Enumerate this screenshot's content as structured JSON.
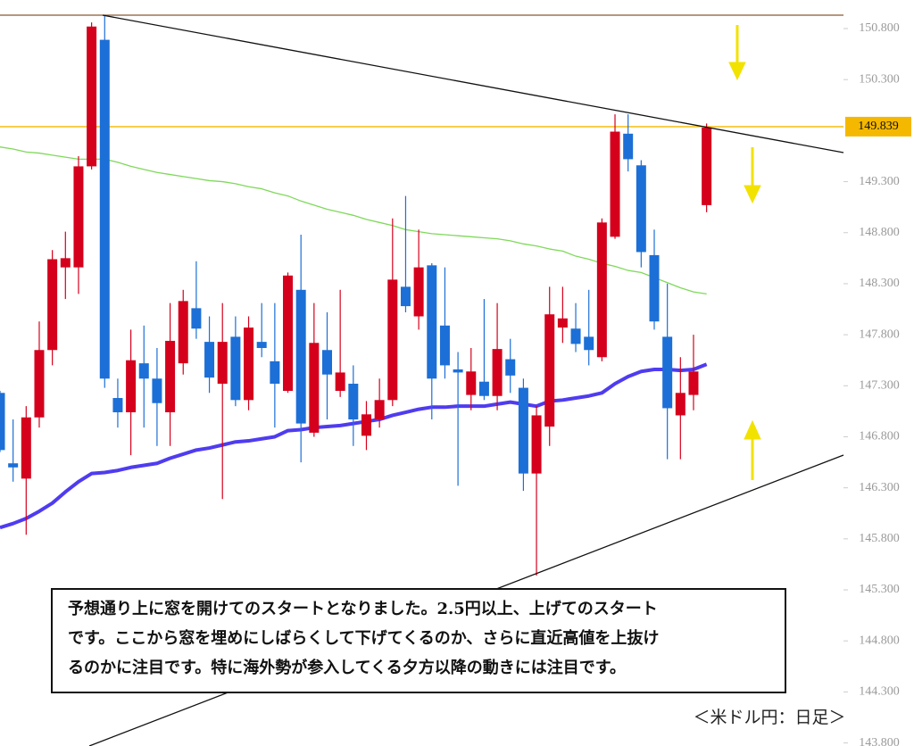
{
  "chart_data": {
    "type": "candlestick",
    "open": [
      147.23,
      146.54,
      146.39,
      146.99,
      147.65,
      148.46,
      148.46,
      149.45,
      150.69,
      147.18,
      147.04,
      147.52,
      147.37,
      147.04,
      147.52,
      148.06,
      147.73,
      147.32,
      147.78,
      147.16,
      147.73,
      147.54,
      147.25,
      148.24,
      146.84,
      147.65,
      147.25,
      147.32,
      146.81,
      146.97,
      147.16,
      148.27,
      147.98,
      148.48,
      147.89,
      147.46,
      147.21,
      147.34,
      147.2,
      147.56,
      147.28,
      146.44,
      146.9,
      147.87,
      147.86,
      147.78,
      147.58,
      148.76,
      149.77,
      149.46,
      148.58,
      147.78,
      147.01,
      147.21,
      149.07
    ],
    "high": [
      147.25,
      146.97,
      147.1,
      147.93,
      148.63,
      148.81,
      149.55,
      150.86,
      150.93,
      147.37,
      147.85,
      147.89,
      147.67,
      148.11,
      148.24,
      148.52,
      147.98,
      148.11,
      147.98,
      147.98,
      148.11,
      148.11,
      148.41,
      148.78,
      148.11,
      148.02,
      148.24,
      147.5,
      147.15,
      147.37,
      148.94,
      149.16,
      148.83,
      148.5,
      148.46,
      147.63,
      147.67,
      148.15,
      148.11,
      147.76,
      147.37,
      147.1,
      148.27,
      148.27,
      148.11,
      148.24,
      148.94,
      149.96,
      149.96,
      149.51,
      148.83,
      148.3,
      147.58,
      147.8,
      149.87
    ],
    "low": [
      146.65,
      146.36,
      145.84,
      146.89,
      147.5,
      148.15,
      148.2,
      149.42,
      147.28,
      146.89,
      146.62,
      146.89,
      146.71,
      146.71,
      147.41,
      147.76,
      147.23,
      146.19,
      147.1,
      147.06,
      147.58,
      146.89,
      147.23,
      146.55,
      146.8,
      146.97,
      147.19,
      146.71,
      146.67,
      146.89,
      147.1,
      148.02,
      147.85,
      146.97,
      147.37,
      146.32,
      147.06,
      147.16,
      147.06,
      147.23,
      146.27,
      145.44,
      146.71,
      147.72,
      147.63,
      147.5,
      147.54,
      148.74,
      149.4,
      148.46,
      147.85,
      146.58,
      146.58,
      147.06,
      149.0
    ],
    "close": [
      146.67,
      146.5,
      146.99,
      147.65,
      148.54,
      148.55,
      149.45,
      150.82,
      147.37,
      147.04,
      147.55,
      147.37,
      147.13,
      147.74,
      148.13,
      147.86,
      147.38,
      147.73,
      147.16,
      147.87,
      147.67,
      147.32,
      148.38,
      146.93,
      147.72,
      147.41,
      147.43,
      146.97,
      147.02,
      147.16,
      148.34,
      148.08,
      148.46,
      147.37,
      147.5,
      147.43,
      147.44,
      147.2,
      147.66,
      147.4,
      146.44,
      147.01,
      148.0,
      147.96,
      147.71,
      147.65,
      148.9,
      149.79,
      149.52,
      148.61,
      147.93,
      147.08,
      147.23,
      147.44,
      149.83
    ],
    "up_color": "#d5001c",
    "down_color": "#1c6fd6",
    "moving_averages": [
      {
        "color": "#7fd95a",
        "values": [
          149.64,
          149.62,
          149.59,
          149.58,
          149.56,
          149.54,
          149.52,
          149.52,
          149.52,
          149.49,
          149.45,
          149.42,
          149.39,
          149.37,
          149.35,
          149.33,
          149.31,
          149.3,
          149.28,
          149.25,
          149.23,
          149.19,
          149.16,
          149.11,
          149.07,
          149.03,
          149.0,
          148.97,
          148.93,
          148.9,
          148.87,
          148.83,
          148.81,
          148.79,
          148.78,
          148.77,
          148.76,
          148.75,
          148.74,
          148.72,
          148.69,
          148.67,
          148.64,
          148.62,
          148.57,
          148.54,
          148.5,
          148.47,
          148.43,
          148.41,
          148.36,
          148.31,
          148.26,
          148.22,
          148.2
        ]
      },
      {
        "color": "#4f3cf0",
        "values": [
          145.91,
          145.95,
          146.0,
          146.07,
          146.15,
          146.26,
          146.36,
          146.44,
          146.45,
          146.47,
          146.5,
          146.52,
          146.54,
          146.59,
          146.63,
          146.67,
          146.69,
          146.72,
          146.75,
          146.76,
          146.78,
          146.8,
          146.86,
          146.87,
          146.89,
          146.9,
          146.91,
          146.93,
          146.95,
          146.97,
          147.01,
          147.04,
          147.07,
          147.09,
          147.09,
          147.1,
          147.1,
          147.1,
          147.12,
          147.14,
          147.12,
          147.1,
          147.15,
          147.16,
          147.18,
          147.2,
          147.23,
          147.32,
          147.39,
          147.44,
          147.46,
          147.46,
          147.45,
          147.46,
          147.51
        ]
      }
    ],
    "last_price": {
      "value": 149.839,
      "label": "149.839",
      "color": "#f5b800"
    },
    "ylim": [
      143.77,
      151.08
    ],
    "yticks": [
      {
        "value": 150.8,
        "label": "150.800"
      },
      {
        "value": 150.3,
        "label": "150.300"
      },
      {
        "value": 149.3,
        "label": "149.300"
      },
      {
        "value": 148.8,
        "label": "148.800"
      },
      {
        "value": 148.3,
        "label": "148.300"
      },
      {
        "value": 147.8,
        "label": "147.800"
      },
      {
        "value": 147.3,
        "label": "147.300"
      },
      {
        "value": 146.8,
        "label": "146.800"
      },
      {
        "value": 146.3,
        "label": "146.300"
      },
      {
        "value": 145.8,
        "label": "145.800"
      },
      {
        "value": 145.3,
        "label": "145.300"
      },
      {
        "value": 144.8,
        "label": "144.800"
      },
      {
        "value": 144.3,
        "label": "144.300"
      },
      {
        "value": 143.8,
        "label": "143.800"
      }
    ],
    "annotation_lines": [
      "予想通り上に窓を開けてのスタートとなりました。2.5円以上、上げてのスタート",
      "です。ここから窓を埋めにしばらくして下げてくるのか、さらに直近高値を上抜け",
      "るのかに注目です。特に海外勢が参入してくる夕方以降の動きには注目です。"
    ],
    "caption": "＜米ドル円：日足＞"
  }
}
